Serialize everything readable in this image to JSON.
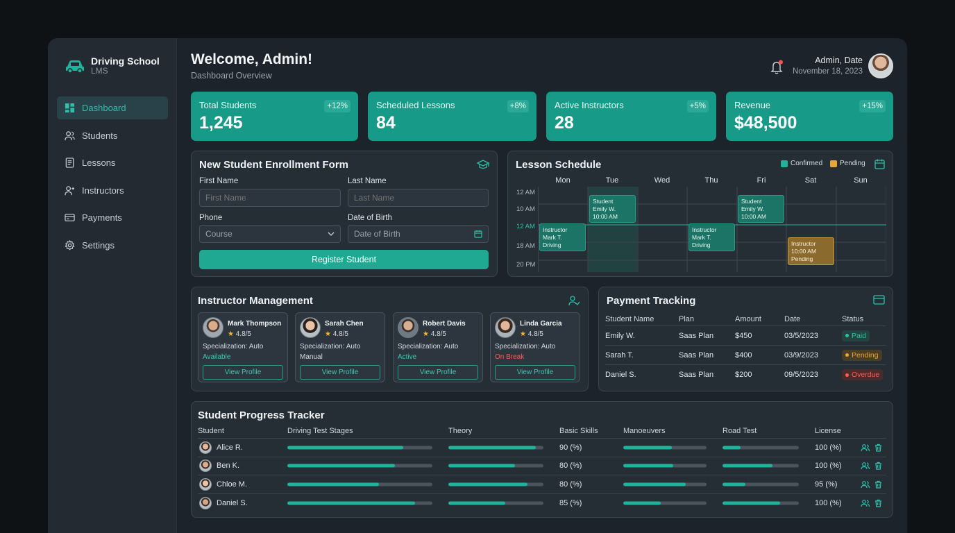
{
  "sidebar": {
    "brand": {
      "title": "Driving School",
      "subtitle": "LMS"
    },
    "items": [
      {
        "label": "Dashboard",
        "icon": "dashboard-icon",
        "active": true
      },
      {
        "label": "Students",
        "icon": "students-icon"
      },
      {
        "label": "Lessons",
        "icon": "lessons-icon"
      },
      {
        "label": "Instructors",
        "icon": "instructors-icon"
      },
      {
        "label": "Payments",
        "icon": "payments-icon"
      },
      {
        "label": "Settings",
        "icon": "settings-icon"
      }
    ]
  },
  "header": {
    "title": "Welcome, Admin!",
    "subtitle": "Dashboard Overview",
    "user_name": "Admin, Date",
    "date": "November 18, 2023"
  },
  "stats": [
    {
      "label": "Total Students",
      "value": "1,245",
      "change": "+12%"
    },
    {
      "label": "Scheduled Lessons",
      "value": "84",
      "change": "+8%"
    },
    {
      "label": "Active Instructors",
      "value": "28",
      "change": "+5%"
    },
    {
      "label": "Revenue",
      "value": "$48,500",
      "change": "+15%"
    }
  ],
  "enrollment": {
    "title": "New Student Enrollment Form",
    "first_name_label": "First Name",
    "first_name_placeholder": "First Name",
    "last_name_label": "Last Name",
    "last_name_placeholder": "Last Name",
    "phone_label": "Phone",
    "phone_select_value": "Course",
    "dob_label": "Date of Birth",
    "dob_placeholder": "Date of Birth",
    "submit_label": "Register Student"
  },
  "schedule": {
    "title": "Lesson Schedule",
    "legend": [
      {
        "label": "Confirmed",
        "color": "#1fb39c"
      },
      {
        "label": "Pending",
        "color": "#e7a63a"
      }
    ],
    "days": [
      "Mon",
      "Tue",
      "Wed",
      "Thu",
      "Fri",
      "Sat",
      "Sun"
    ],
    "times": [
      "12 AM",
      "10 AM",
      "12 AM",
      "18 AM",
      "20 PM"
    ],
    "events": [
      {
        "day": "Tue",
        "status": "confirmed",
        "lines": [
          "Student",
          "Emily W.",
          "10:00 AM"
        ]
      },
      {
        "day": "Fri",
        "status": "confirmed",
        "lines": [
          "Student",
          "Emily W.",
          "10:00 AM"
        ]
      },
      {
        "day": "Mon",
        "status": "confirmed",
        "lines": [
          "Instructor",
          "Mark T.",
          "Driving"
        ]
      },
      {
        "day": "Thu",
        "status": "confirmed",
        "lines": [
          "Instructor",
          "Mark T.",
          "Driving"
        ]
      },
      {
        "day": "Sat",
        "status": "pending",
        "lines": [
          "Instructor",
          "10:00 AM",
          "Pending"
        ]
      }
    ]
  },
  "instructors": {
    "title": "Instructor Management",
    "specialization_prefix": "Specialization:",
    "view_label": "View Profile",
    "items": [
      {
        "name": "Mark Thompson",
        "rating": "4.8/5",
        "specialization": "Specialization: Auto",
        "status": "Available",
        "status_color": "#3fc7ae"
      },
      {
        "name": "Sarah Chen",
        "rating": "4.8/5",
        "specialization": "Specialization: Auto",
        "status": "Manual",
        "status_color": "#d4dade"
      },
      {
        "name": "Robert Davis",
        "rating": "4.8/5",
        "specialization": "Specialization: Auto",
        "status": "Active",
        "status_color": "#3fc7ae"
      },
      {
        "name": "Linda Garcia",
        "rating": "4.8/5",
        "specialization": "Specialization: Auto",
        "status": "On Break",
        "status_color": "#ff5c52"
      }
    ]
  },
  "payments": {
    "title": "Payment Tracking",
    "columns": [
      "Student Name",
      "Plan",
      "Amount",
      "Date",
      "Status"
    ],
    "rows": [
      {
        "name": "Emily W.",
        "plan": "Saas Plan",
        "amount": "$450",
        "date": "03/5/2023",
        "status": "Paid",
        "color": "#2cc1a9"
      },
      {
        "name": "Sarah T.",
        "plan": "Saas Plan",
        "amount": "$400",
        "date": "03/9/2023",
        "status": "Pending",
        "color": "#e7a63a"
      },
      {
        "name": "Daniel S.",
        "plan": "Saas Plan",
        "amount": "$200",
        "date": "09/5/2023",
        "status": "Overdue",
        "color": "#ff5c52"
      }
    ]
  },
  "progress": {
    "title": "Student Progress Tracker",
    "columns": [
      "Student",
      "Driving Test Stages",
      "Theory",
      "Basic Skills",
      "Manoeuvers",
      "Road Test",
      "License"
    ],
    "rows": [
      {
        "name": "Alice R.",
        "stages": 0.8,
        "theory": 0.92,
        "basic": "90 (%)",
        "manoeuvers": 0.58,
        "road": 0.24,
        "license": "100 (%)"
      },
      {
        "name": "Ben K.",
        "stages": 0.74,
        "theory": 0.7,
        "basic": "80 (%)",
        "manoeuvers": 0.6,
        "road": 0.65,
        "license": "100 (%)"
      },
      {
        "name": "Chloe M.",
        "stages": 0.63,
        "theory": 0.83,
        "basic": "80 (%)",
        "manoeuvers": 0.75,
        "road": 0.3,
        "license": "95 (%)"
      },
      {
        "name": "Daniel S.",
        "stages": 0.88,
        "theory": 0.6,
        "basic": "85 (%)",
        "manoeuvers": 0.45,
        "road": 0.75,
        "license": "100 (%)"
      }
    ]
  }
}
